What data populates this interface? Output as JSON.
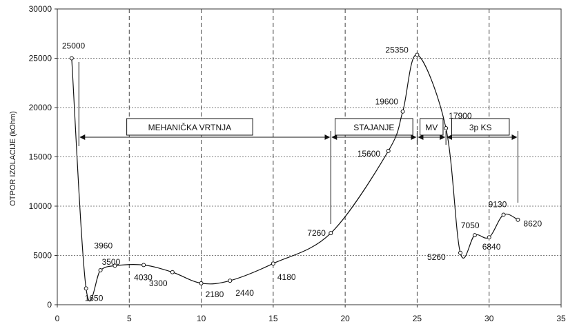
{
  "chart_data": {
    "type": "line",
    "title": "",
    "xlabel": "",
    "ylabel": "OTPOR IZOLACIJE (kOhm)",
    "xlim": [
      0,
      35
    ],
    "ylim": [
      0,
      30000
    ],
    "x_ticks": [
      0,
      5,
      10,
      15,
      20,
      25,
      30,
      35
    ],
    "y_ticks": [
      0,
      5000,
      10000,
      15000,
      20000,
      25000,
      30000
    ],
    "x_tick_labels": [
      "0",
      "5",
      "10",
      "15",
      "20",
      "25",
      "30",
      "35"
    ],
    "y_tick_labels": [
      "0",
      "5000",
      "10000",
      "15000",
      "20000",
      "25000",
      "30000"
    ],
    "grid": {
      "x": "dashed",
      "y": "dotted"
    },
    "legend": "none",
    "series": [
      {
        "x": [
          1,
          2,
          3,
          4,
          6,
          8,
          10,
          12,
          15,
          19,
          23,
          24,
          25,
          27,
          28,
          29,
          30,
          31,
          32
        ],
        "values": [
          25000,
          1650,
          3500,
          3960,
          4030,
          3300,
          2180,
          2440,
          4180,
          7260,
          15600,
          19600,
          25350,
          17900,
          5260,
          7050,
          6840,
          9130,
          8620
        ],
        "labels": [
          "25000",
          "1650",
          "3500",
          "3960",
          "4030",
          "3300",
          "2180",
          "2440",
          "4180",
          "7260",
          "15600",
          "19600",
          "25350",
          "17900",
          "5260",
          "7050",
          "6840",
          "9130",
          "8620"
        ]
      }
    ],
    "phases": [
      {
        "label": "MEHANIČKA VRTNJA",
        "from": 1.5,
        "to": 19
      },
      {
        "label": "STAJANJE",
        "from": 19,
        "to": 25
      },
      {
        "label": "MV",
        "from": 25,
        "to": 27
      },
      {
        "label": "3p KS",
        "from": 27,
        "to": 32
      }
    ]
  }
}
